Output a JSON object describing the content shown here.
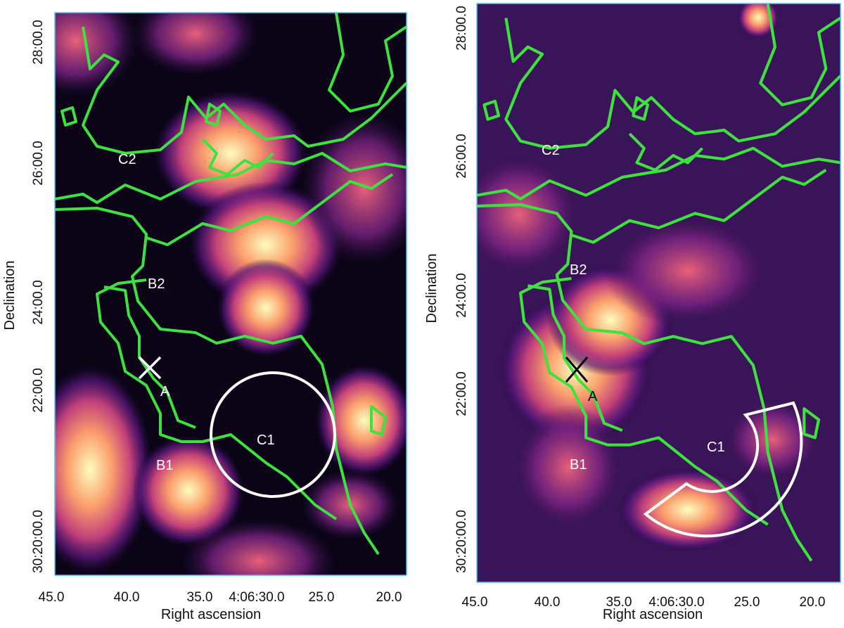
{
  "panels": [
    {
      "x_label": "Right ascension",
      "y_label": "Declination",
      "x_ticks": [
        "45.0",
        "40.0",
        "35.0",
        "4:06:30.0",
        "25.0",
        "20.0"
      ],
      "y_ticks": [
        "28:00.0",
        "26:00.0",
        "24:00.0",
        "22:00.0",
        "30:20:00.0"
      ],
      "annotations": [
        "C2",
        "B2",
        "A",
        "B1",
        "C1"
      ]
    },
    {
      "x_label": "Right ascension",
      "y_label": "Declination",
      "x_ticks": [
        "45.0",
        "40.0",
        "35.0",
        "4:06:30.0",
        "25.0",
        "20.0"
      ],
      "y_ticks": [
        "28:00.0",
        "26:00.0",
        "24:00.0",
        "22:00.0",
        "30:20:00.0"
      ],
      "annotations": [
        "C2",
        "B2",
        "A",
        "B1",
        "C1"
      ]
    }
  ]
}
